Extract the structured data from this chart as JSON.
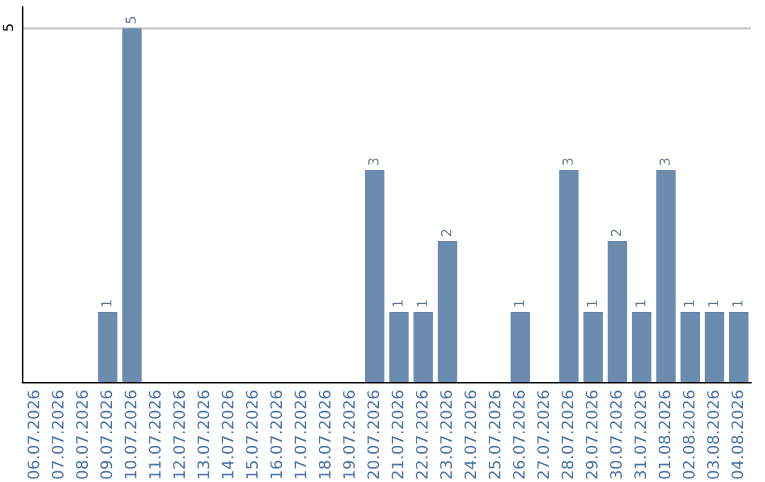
{
  "chart_data": {
    "type": "bar",
    "categories": [
      "06.07.2026",
      "07.07.2026",
      "08.07.2026",
      "09.07.2026",
      "10.07.2026",
      "11.07.2026",
      "12.07.2026",
      "13.07.2026",
      "14.07.2026",
      "15.07.2026",
      "16.07.2026",
      "17.07.2026",
      "18.07.2026",
      "19.07.2026",
      "20.07.2026",
      "21.07.2026",
      "22.07.2026",
      "23.07.2026",
      "24.07.2026",
      "25.07.2026",
      "26.07.2026",
      "27.07.2026",
      "28.07.2026",
      "29.07.2026",
      "30.07.2026",
      "31.07.2026",
      "01.08.2026",
      "02.08.2026",
      "03.08.2026",
      "04.08.2026"
    ],
    "values": [
      0,
      0,
      0,
      1,
      5,
      0,
      0,
      0,
      0,
      0,
      0,
      0,
      0,
      0,
      3,
      1,
      1,
      2,
      0,
      0,
      1,
      0,
      3,
      1,
      2,
      1,
      3,
      1,
      1,
      1
    ],
    "value_labels": [
      null,
      null,
      null,
      "1",
      "5",
      null,
      null,
      null,
      null,
      null,
      null,
      null,
      null,
      null,
      "3",
      "1",
      "1",
      "2",
      null,
      null,
      "1",
      null,
      "3",
      "1",
      "2",
      "1",
      "3",
      "1",
      "1",
      "1"
    ],
    "color": "#6b8cae",
    "ylim": [
      0,
      5.3
    ],
    "yticks": [
      5
    ],
    "grid": "y"
  }
}
